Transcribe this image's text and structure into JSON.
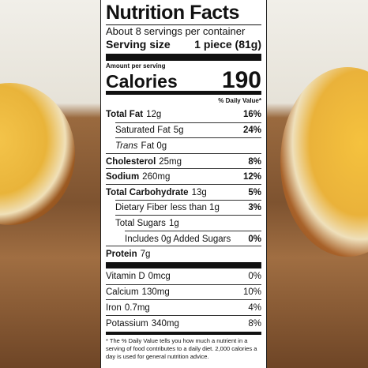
{
  "header": {
    "title": "Nutrition Facts",
    "servings": "About 8 servings per container",
    "serving_size_label": "Serving size",
    "serving_size_value": "1 piece (81g)"
  },
  "calories": {
    "amount_per_serving": "Amount per serving",
    "label": "Calories",
    "value": "190"
  },
  "daily_value_header": "% Daily Value*",
  "nutrients": [
    {
      "name": "Total Fat",
      "amount": "12g",
      "dv": "16%"
    },
    {
      "name": "Saturated Fat",
      "amount": "5g",
      "dv": "24%"
    },
    {
      "name": "Trans",
      "amount": "Fat 0g"
    },
    {
      "name": "Cholesterol",
      "amount": "25mg",
      "dv": "8%"
    },
    {
      "name": "Sodium",
      "amount": "260mg",
      "dv": "12%"
    },
    {
      "name": "Total Carbohydrate",
      "amount": "13g",
      "dv": "5%"
    },
    {
      "name": "Dietary Fiber",
      "amount": "less than 1g",
      "dv": "3%"
    },
    {
      "name": "Total Sugars",
      "amount": "1g"
    },
    {
      "name": "Includes 0g Added Sugars",
      "dv": "0%"
    },
    {
      "name": "Protein",
      "amount": "7g"
    }
  ],
  "vitamins": [
    {
      "name": "Vitamin D",
      "amount": "0mcg",
      "dv": "0%"
    },
    {
      "name": "Calcium",
      "amount": "130mg",
      "dv": "10%"
    },
    {
      "name": "Iron",
      "amount": "0.7mg",
      "dv": "4%"
    },
    {
      "name": "Potassium",
      "amount": "340mg",
      "dv": "8%"
    }
  ],
  "footnote": "* The % Daily Value tells you how much a nutrient in a serving of food contributes to a daily diet. 2,000 calories a day is used for general nutrition advice."
}
